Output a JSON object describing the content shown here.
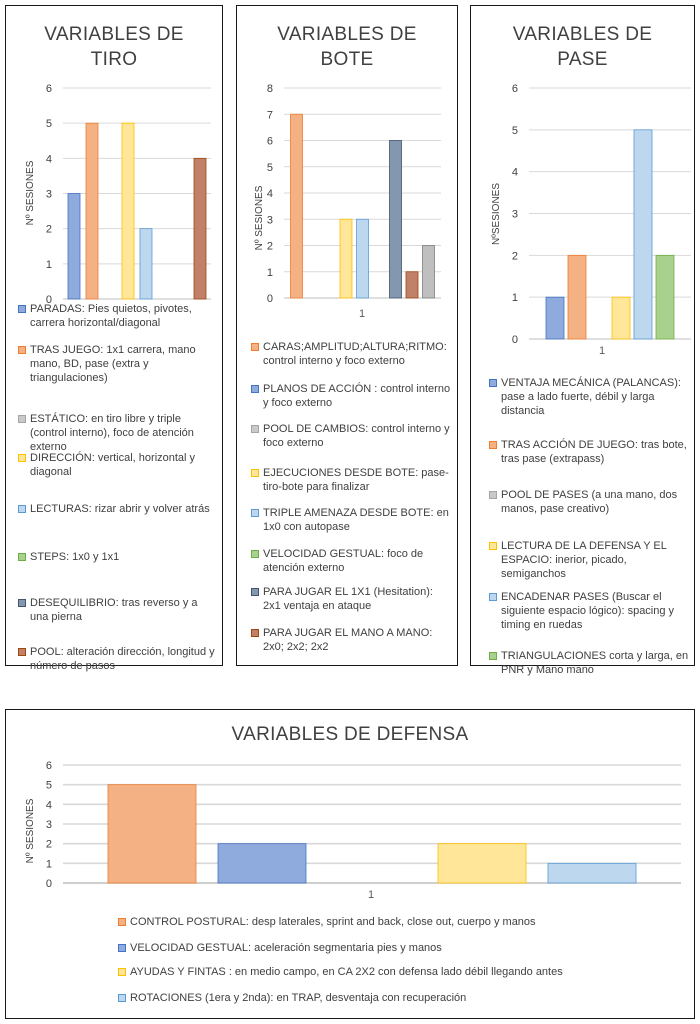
{
  "chart_data": [
    {
      "id": "tiro",
      "type": "bar",
      "title": "VARIABLES DE\nTIRO",
      "ylabel": "Nº SESIONES",
      "categories": [
        "1"
      ],
      "show_category_label": false,
      "ylim": [
        0,
        6
      ],
      "yticks": [
        "0",
        "1",
        "2",
        "3",
        "4",
        "5",
        "6"
      ],
      "grid": true,
      "legend_position": "bottom",
      "series": [
        {
          "name": "PARADAS: Pies quietos, pivotes, carrera horizontal/diagonal",
          "value": 3,
          "color": "#8faadc",
          "stroke": "#4472c4"
        },
        {
          "name": "TRAS JUEGO: 1x1 carrera, mano mano, BD, pase (extra y triangulaciones)",
          "value": 5,
          "color": "#f4b183",
          "stroke": "#ed7d31"
        },
        {
          "name": "ESTÁTICO: en tiro libre y triple (control interno), foco de atención externo",
          "value": 0,
          "color": "#c9c9c9",
          "stroke": "#a5a5a5"
        },
        {
          "name": "DIRECCIÓN: vertical, horizontal y diagonal",
          "value": 5,
          "color": "#ffe699",
          "stroke": "#ffc000"
        },
        {
          "name": "LECTURAS: rizar abrir y volver atrás",
          "value": 2,
          "color": "#bdd7ee",
          "stroke": "#5b9bd5"
        },
        {
          "name": "STEPS: 1x0 y 1x1",
          "value": 0,
          "color": "#a9d18e",
          "stroke": "#70ad47"
        },
        {
          "name": "DESEQUILIBRIO: tras reverso y a una pierna",
          "value": 0,
          "color": "#8497b0",
          "stroke": "#44546a"
        },
        {
          "name": "POOL: alteración dirección, longitud y número de pasos",
          "value": 4,
          "color": "#c0806a",
          "stroke": "#9e480e"
        }
      ]
    },
    {
      "id": "bote",
      "type": "bar",
      "title": "VARIABLES DE\nBOTE",
      "ylabel": "Nº SESIONES",
      "categories": [
        "1"
      ],
      "show_category_label": true,
      "ylim": [
        0,
        8
      ],
      "yticks": [
        "0",
        "1",
        "2",
        "3",
        "4",
        "5",
        "6",
        "7",
        "8"
      ],
      "grid": true,
      "legend_position": "bottom",
      "series": [
        {
          "name": "CARAS;AMPLITUD;ALTURA;RITMO: control interno y foco externo",
          "value": 7,
          "color": "#f4b183",
          "stroke": "#ed7d31"
        },
        {
          "name": "PLANOS DE ACCIÓN : control interno y foco externo",
          "value": 0,
          "color": "#8faadc",
          "stroke": "#4472c4"
        },
        {
          "name": "POOL DE CAMBIOS: control interno y foco externo",
          "value": 0,
          "color": "#c9c9c9",
          "stroke": "#a5a5a5"
        },
        {
          "name": "EJECUCIONES DESDE BOTE: pase-tiro-bote para finalizar",
          "value": 3,
          "color": "#ffe699",
          "stroke": "#ffc000"
        },
        {
          "name": "TRIPLE AMENAZA DESDE BOTE: en 1x0 con autopase",
          "value": 3,
          "color": "#bdd7ee",
          "stroke": "#5b9bd5"
        },
        {
          "name": "VELOCIDAD GESTUAL: foco de atención externo",
          "value": 0,
          "color": "#a9d18e",
          "stroke": "#70ad47"
        },
        {
          "name": "PARA JUGAR EL 1X1 (Hesitation): 2x1 ventaja en ataque",
          "value": 6,
          "color": "#8497b0",
          "stroke": "#44546a"
        },
        {
          "name": "PARA JUGAR EL MANO A MANO: 2x0; 2x2; 2x2",
          "value": 1,
          "color": "#c0806a",
          "stroke": "#9e480e"
        },
        {
          "name": "",
          "value": 2,
          "color": "#bfbfbf",
          "stroke": "#7f7f7f"
        }
      ]
    },
    {
      "id": "pase",
      "type": "bar",
      "title": "VARIABLES DE\nPASE",
      "ylabel": "NºSESIONES",
      "categories": [
        "1"
      ],
      "show_category_label": true,
      "ylim": [
        0,
        6
      ],
      "yticks": [
        "0",
        "1",
        "2",
        "3",
        "4",
        "5",
        "6"
      ],
      "grid": true,
      "legend_position": "bottom",
      "series": [
        {
          "name": "VENTAJA MECÁNICA (PALANCAS): pase a lado fuerte, débil y larga distancia",
          "value": 1,
          "color": "#8faadc",
          "stroke": "#4472c4"
        },
        {
          "name": "TRAS ACCIÓN DE JUEGO: tras bote, tras pase (extrapass)",
          "value": 2,
          "color": "#f4b183",
          "stroke": "#ed7d31"
        },
        {
          "name": "POOL DE PASES (a una mano, dos manos, pase creativo)",
          "value": 0,
          "color": "#c9c9c9",
          "stroke": "#a5a5a5"
        },
        {
          "name": "LECTURA DE LA DEFENSA Y EL ESPACIO: inerior, picado, semiganchos",
          "value": 1,
          "color": "#ffe699",
          "stroke": "#ffc000"
        },
        {
          "name": "ENCADENAR PASES (Buscar el siguiente espacio lógico): spacing y timing en ruedas",
          "value": 5,
          "color": "#bdd7ee",
          "stroke": "#5b9bd5"
        },
        {
          "name": "TRIANGULACIONES corta y larga, en PNR y Mano mano",
          "value": 2,
          "color": "#a9d18e",
          "stroke": "#70ad47"
        }
      ]
    },
    {
      "id": "defensa",
      "type": "bar",
      "title": "VARIABLES DE DEFENSA",
      "ylabel": "Nº SESIONES",
      "categories": [
        "1"
      ],
      "show_category_label": true,
      "ylim": [
        0,
        6
      ],
      "yticks": [
        "0",
        "1",
        "2",
        "3",
        "4",
        "5",
        "6"
      ],
      "grid": true,
      "legend_position": "bottom",
      "series": [
        {
          "name": "CONTROL POSTURAL: desp laterales, sprint and back, close out, cuerpo y manos",
          "value": 5,
          "color": "#f4b183",
          "stroke": "#ed7d31"
        },
        {
          "name": "VELOCIDAD GESTUAL: aceleración segmentaria pies y manos",
          "value": 2,
          "color": "#8faadc",
          "stroke": "#4472c4"
        },
        {
          "name": "",
          "value": 0,
          "color": "#c9c9c9",
          "stroke": "#a5a5a5"
        },
        {
          "name": "AYUDAS Y FINTAS : en medio campo, en CA 2X2 con defensa lado débil llegando antes",
          "value": 2,
          "color": "#ffe699",
          "stroke": "#ffc000"
        },
        {
          "name": "ROTACIONES (1era y 2nda): en TRAP, desventaja con recuperación",
          "value": 1,
          "color": "#bdd7ee",
          "stroke": "#5b9bd5"
        }
      ]
    }
  ]
}
